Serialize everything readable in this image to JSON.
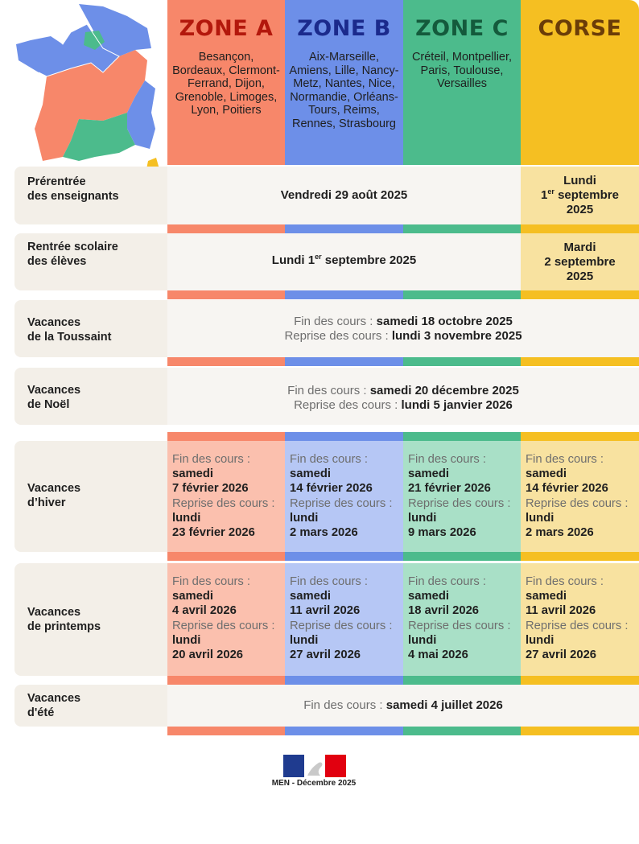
{
  "colors": {
    "zone_a": "#f7876a",
    "zone_b": "#6d8fe8",
    "zone_c": "#4cbb8c",
    "corse": "#f5bf22",
    "zone_a_light": "#fbc0ae",
    "zone_b_light": "#b6c7f5",
    "zone_c_light": "#a9e0c7",
    "corse_light": "#f8e2a0",
    "label_bg": "#f3efe8",
    "content_bg": "#f7f5f2"
  },
  "zones": [
    {
      "title": "ZONE A",
      "cities": "Besançon, Bordeaux, Clermont-Ferrand, Dijon, Grenoble, Limoges, Lyon, Poitiers",
      "title_color": "#b3180c"
    },
    {
      "title": "ZONE B",
      "cities": "Aix-Marseille, Amiens, Lille, Nancy-Metz, Nantes, Nice, Normandie, Orléans-Tours, Reims, Rennes, Strasbourg",
      "title_color": "#1b2a8c"
    },
    {
      "title": "ZONE C",
      "cities": "Créteil, Montpellier, Paris, Toulouse, Versailles",
      "title_color": "#145a3c"
    },
    {
      "title": "CORSE",
      "cities": "",
      "title_color": "#6b3d08"
    }
  ],
  "rows": {
    "prerentree": {
      "label_1": "Prérentrée",
      "label_2": "des enseignants",
      "main": "Vendredi 29 août 2025",
      "corse_1": "Lundi",
      "corse_2a": "1",
      "corse_2sup": "er",
      "corse_2b": " septembre",
      "corse_3": "2025"
    },
    "rentree": {
      "label_1": "Rentrée scolaire",
      "label_2": "des élèves",
      "main_a": "Lundi 1",
      "main_sup": "er",
      "main_b": " septembre 2025",
      "corse_1": "Mardi",
      "corse_2": "2 septembre",
      "corse_3": "2025"
    },
    "toussaint": {
      "label_1": "Vacances",
      "label_2": "de la Toussaint",
      "fin_label": "Fin des cours : ",
      "fin_date": "samedi 18 octobre 2025",
      "reprise_label": "Reprise des cours : ",
      "reprise_date": "lundi 3 novembre 2025"
    },
    "noel": {
      "label_1": "Vacances",
      "label_2": "de Noël",
      "fin_label": "Fin des cours : ",
      "fin_date": "samedi 20 décembre 2025",
      "reprise_label": "Reprise des cours : ",
      "reprise_date": "lundi 5 janvier 2026"
    },
    "hiver": {
      "label_1": "Vacances",
      "label_2": "d’hiver",
      "cells": [
        {
          "fin_label": "Fin des cours :",
          "fin_day": "samedi",
          "fin_date": "7 février 2026",
          "reprise_label": "Reprise des cours :",
          "reprise_day": "lundi",
          "reprise_date": "23 février 2026"
        },
        {
          "fin_label": "Fin des cours :",
          "fin_day": "samedi",
          "fin_date": "14 février 2026",
          "reprise_label": "Reprise des cours :",
          "reprise_day": "lundi",
          "reprise_date": "2 mars 2026"
        },
        {
          "fin_label": "Fin des cours :",
          "fin_day": "samedi",
          "fin_date": "21 février 2026",
          "reprise_label": "Reprise des cours :",
          "reprise_day": "lundi",
          "reprise_date": "9 mars 2026"
        },
        {
          "fin_label": "Fin des cours :",
          "fin_day": "samedi",
          "fin_date": "14 février 2026",
          "reprise_label": "Reprise des cours :",
          "reprise_day": "lundi",
          "reprise_date": "2 mars 2026"
        }
      ]
    },
    "printemps": {
      "label_1": "Vacances",
      "label_2": "de printemps",
      "cells": [
        {
          "fin_label": "Fin des cours :",
          "fin_day": "samedi",
          "fin_date": "4 avril 2026",
          "reprise_label": "Reprise des cours :",
          "reprise_day": "lundi",
          "reprise_date": "20 avril 2026"
        },
        {
          "fin_label": "Fin des cours :",
          "fin_day": "samedi",
          "fin_date": "11 avril 2026",
          "reprise_label": "Reprise des cours :",
          "reprise_day": "lundi",
          "reprise_date": "27 avril 2026"
        },
        {
          "fin_label": "Fin des cours :",
          "fin_day": "samedi",
          "fin_date": "18 avril 2026",
          "reprise_label": "Reprise des cours :",
          "reprise_day": "lundi",
          "reprise_date": "4 mai 2026"
        },
        {
          "fin_label": "Fin des cours :",
          "fin_day": "samedi",
          "fin_date": "11 avril 2026",
          "reprise_label": "Reprise des cours :",
          "reprise_day": "lundi",
          "reprise_date": "27 avril 2026"
        }
      ]
    },
    "ete": {
      "label_1": "Vacances",
      "label_2": "d'été",
      "fin_label": "Fin des cours : ",
      "fin_date": "samedi 4 juillet 2026"
    }
  },
  "footer": {
    "text": "MEN - Décembre 2025"
  }
}
